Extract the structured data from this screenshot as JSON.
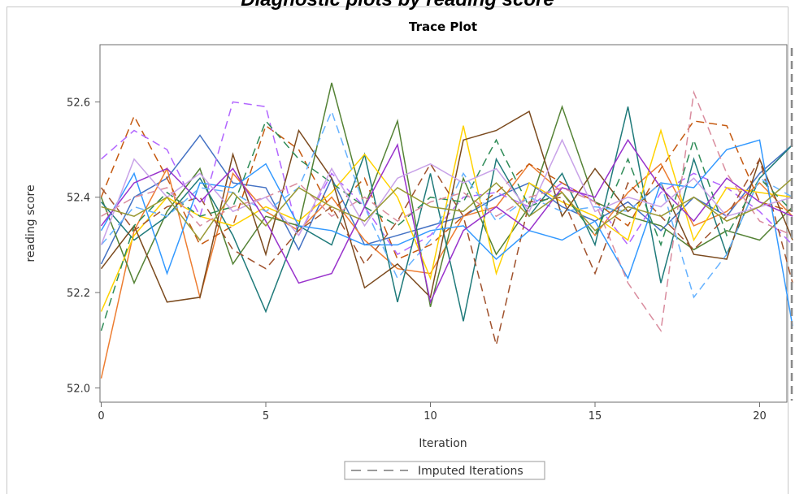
{
  "page_title": "Diagnostic plots by reading score",
  "chart_data": {
    "type": "line",
    "title": "Trace Plot",
    "xlabel": "Iteration",
    "ylabel": "reading score",
    "xlim": [
      0,
      21
    ],
    "ylim": [
      51.97,
      52.72
    ],
    "x_ticks": [
      0,
      5,
      10,
      15,
      20
    ],
    "y_ticks": [
      52.0,
      52.2,
      52.4,
      52.6
    ],
    "grid": false,
    "legend_position": "bottom-center",
    "legend": [
      {
        "label": "Imputed Iterations",
        "style": "dashed",
        "color": "#9a9a9a"
      }
    ],
    "reference_lines": [
      {
        "axis": "x",
        "value": 21,
        "style": "dashed",
        "color": "#8a8a8a"
      }
    ],
    "x": [
      0,
      1,
      2,
      3,
      4,
      5,
      6,
      7,
      8,
      9,
      10,
      11,
      12,
      13,
      14,
      15,
      16,
      17,
      18,
      19,
      20,
      21
    ],
    "series": [
      {
        "color": "#4472c4",
        "dash": false,
        "values": [
          52.26,
          52.4,
          52.44,
          52.53,
          52.43,
          52.42,
          52.29,
          52.44,
          52.3,
          52.32,
          52.34,
          52.36,
          52.4,
          52.43,
          52.38,
          52.35,
          52.39,
          52.33,
          52.4,
          52.36,
          52.45,
          52.51
        ]
      },
      {
        "color": "#ed7d31",
        "dash": false,
        "values": [
          52.02,
          52.33,
          52.46,
          52.19,
          52.45,
          52.37,
          52.33,
          52.4,
          52.31,
          52.25,
          52.24,
          52.36,
          52.38,
          52.47,
          52.41,
          52.32,
          52.41,
          52.47,
          52.34,
          52.37,
          52.43,
          52.36
        ]
      },
      {
        "color": "#c55a11",
        "dash": true,
        "values": [
          52.4,
          52.57,
          52.44,
          52.3,
          52.34,
          52.55,
          52.5,
          52.37,
          52.44,
          52.27,
          52.3,
          52.36,
          52.41,
          52.47,
          52.43,
          52.39,
          52.34,
          52.46,
          52.56,
          52.55,
          52.39,
          52.37
        ]
      },
      {
        "color": "#b266ff",
        "dash": true,
        "values": [
          52.48,
          52.54,
          52.5,
          52.36,
          52.6,
          52.59,
          52.32,
          52.45,
          52.38,
          52.28,
          52.32,
          52.4,
          52.41,
          52.38,
          52.43,
          52.39,
          52.3,
          52.41,
          52.45,
          52.42,
          52.37,
          52.3
        ]
      },
      {
        "color": "#548235",
        "dash": false,
        "values": [
          52.4,
          52.22,
          52.37,
          52.46,
          52.26,
          52.36,
          52.34,
          52.64,
          52.38,
          52.56,
          52.17,
          52.44,
          52.28,
          52.38,
          52.59,
          52.39,
          52.36,
          52.34,
          52.29,
          52.33,
          52.31,
          52.38
        ]
      },
      {
        "color": "#1f7a7a",
        "dash": false,
        "values": [
          52.39,
          52.31,
          52.36,
          52.44,
          52.32,
          52.16,
          52.34,
          52.3,
          52.49,
          52.18,
          52.45,
          52.14,
          52.48,
          52.36,
          52.45,
          52.3,
          52.59,
          52.22,
          52.48,
          52.28,
          52.44,
          52.51
        ]
      },
      {
        "color": "#ffd200",
        "dash": false,
        "values": [
          52.16,
          52.32,
          52.4,
          52.36,
          52.34,
          52.38,
          52.35,
          52.41,
          52.49,
          52.4,
          52.23,
          52.55,
          52.24,
          52.43,
          52.39,
          52.36,
          52.31,
          52.54,
          52.31,
          52.42,
          52.41,
          52.4
        ]
      },
      {
        "color": "#7b4a1e",
        "dash": false,
        "values": [
          52.25,
          52.34,
          52.18,
          52.19,
          52.49,
          52.28,
          52.54,
          52.44,
          52.21,
          52.26,
          52.19,
          52.52,
          52.54,
          52.58,
          52.36,
          52.46,
          52.37,
          52.43,
          52.28,
          52.27,
          52.48,
          52.31
        ]
      },
      {
        "color": "#a0522d",
        "dash": true,
        "values": [
          52.42,
          52.33,
          52.38,
          52.4,
          52.29,
          52.25,
          52.33,
          52.38,
          52.26,
          52.35,
          52.47,
          52.36,
          52.09,
          52.39,
          52.4,
          52.24,
          52.43,
          52.36,
          52.29,
          52.36,
          52.48,
          52.22
        ]
      },
      {
        "color": "#2e8b57",
        "dash": true,
        "values": [
          52.12,
          52.34,
          52.41,
          52.36,
          52.38,
          52.56,
          52.48,
          52.43,
          52.38,
          52.34,
          52.4,
          52.39,
          52.52,
          52.38,
          52.41,
          52.32,
          52.48,
          52.3,
          52.52,
          52.32,
          52.44,
          52.37
        ]
      },
      {
        "color": "#3399ff",
        "dash": false,
        "values": [
          52.33,
          52.45,
          52.24,
          52.43,
          52.42,
          52.47,
          52.34,
          52.33,
          52.3,
          52.3,
          52.33,
          52.34,
          52.27,
          52.33,
          52.31,
          52.35,
          52.23,
          52.43,
          52.42,
          52.5,
          52.52,
          52.13
        ]
      },
      {
        "color": "#66b2ff",
        "dash": true,
        "values": [
          52.3,
          52.38,
          52.36,
          52.42,
          52.41,
          52.37,
          52.42,
          52.58,
          52.38,
          52.23,
          52.31,
          52.45,
          52.35,
          52.4,
          52.37,
          52.38,
          52.37,
          52.43,
          52.19,
          52.28,
          52.44,
          52.4
        ]
      },
      {
        "color": "#9933cc",
        "dash": false,
        "values": [
          52.34,
          52.43,
          52.46,
          52.39,
          52.46,
          52.35,
          52.22,
          52.24,
          52.38,
          52.51,
          52.18,
          52.33,
          52.38,
          52.33,
          52.42,
          52.4,
          52.52,
          52.42,
          52.35,
          52.44,
          52.39,
          52.36
        ]
      },
      {
        "color": "#d98c9e",
        "dash": true,
        "values": [
          52.36,
          52.4,
          52.42,
          52.34,
          52.38,
          52.4,
          52.43,
          52.36,
          52.4,
          52.35,
          52.39,
          52.41,
          52.36,
          52.4,
          52.42,
          52.39,
          52.22,
          52.12,
          52.62,
          52.45,
          52.35,
          52.32
        ]
      },
      {
        "color": "#c8a2e8",
        "dash": false,
        "values": [
          52.3,
          52.48,
          52.4,
          52.45,
          52.37,
          52.4,
          52.32,
          52.46,
          52.34,
          52.44,
          52.47,
          52.43,
          52.46,
          52.37,
          52.52,
          52.37,
          52.4,
          52.38,
          52.44,
          52.36,
          52.38,
          52.4
        ]
      },
      {
        "color": "#999933",
        "dash": false,
        "values": [
          52.38,
          52.36,
          52.4,
          52.31,
          52.41,
          52.34,
          52.42,
          52.38,
          52.35,
          52.42,
          52.38,
          52.37,
          52.43,
          52.36,
          52.41,
          52.33,
          52.38,
          52.36,
          52.4,
          52.35,
          52.38,
          52.44
        ]
      }
    ]
  }
}
